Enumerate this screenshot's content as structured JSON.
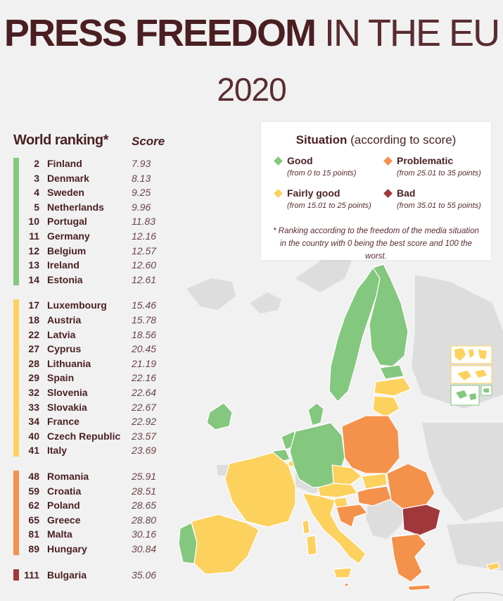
{
  "title": {
    "bold": "PRESS FREEDOM",
    "light": "IN THE EU",
    "year": "2020"
  },
  "columns": {
    "rank": "World ranking*",
    "score": "Score"
  },
  "colors": {
    "good": "#84c77e",
    "fairly_good": "#fcd15d",
    "problematic": "#f4914b",
    "bad": "#a0373b",
    "non_eu": "#dddddd"
  },
  "groups": [
    {
      "category": "good",
      "rows": [
        {
          "rank": "2",
          "country": "Finland",
          "score": "7.93"
        },
        {
          "rank": "3",
          "country": "Denmark",
          "score": "8.13"
        },
        {
          "rank": "4",
          "country": "Sweden",
          "score": "9.25"
        },
        {
          "rank": "5",
          "country": "Netherlands",
          "score": "9.96"
        },
        {
          "rank": "10",
          "country": "Portugal",
          "score": "11.83"
        },
        {
          "rank": "11",
          "country": "Germany",
          "score": "12.16"
        },
        {
          "rank": "12",
          "country": "Belgium",
          "score": "12.57"
        },
        {
          "rank": "13",
          "country": "Ireland",
          "score": "12.60"
        },
        {
          "rank": "14",
          "country": "Estonia",
          "score": "12.61"
        }
      ]
    },
    {
      "category": "fairly_good",
      "rows": [
        {
          "rank": "17",
          "country": "Luxembourg",
          "score": "15.46"
        },
        {
          "rank": "18",
          "country": "Austria",
          "score": "15.78"
        },
        {
          "rank": "22",
          "country": "Latvia",
          "score": "18.56"
        },
        {
          "rank": "27",
          "country": "Cyprus",
          "score": "20.45"
        },
        {
          "rank": "28",
          "country": "Lithuania",
          "score": "21.19"
        },
        {
          "rank": "29",
          "country": "Spain",
          "score": "22.16"
        },
        {
          "rank": "32",
          "country": "Slovenia",
          "score": "22.64"
        },
        {
          "rank": "33",
          "country": "Slovakia",
          "score": "22.67"
        },
        {
          "rank": "34",
          "country": "France",
          "score": "22.92"
        },
        {
          "rank": "40",
          "country": "Czech Republic",
          "score": "23.57"
        },
        {
          "rank": "41",
          "country": "Italy",
          "score": "23.69"
        }
      ]
    },
    {
      "category": "problematic",
      "rows": [
        {
          "rank": "48",
          "country": "Romania",
          "score": "25.91"
        },
        {
          "rank": "59",
          "country": "Croatia",
          "score": "28.51"
        },
        {
          "rank": "62",
          "country": "Poland",
          "score": "28.65"
        },
        {
          "rank": "65",
          "country": "Greece",
          "score": "28.80"
        },
        {
          "rank": "81",
          "country": "Malta",
          "score": "30.16"
        },
        {
          "rank": "89",
          "country": "Hungary",
          "score": "30.84"
        }
      ]
    },
    {
      "category": "bad",
      "rows": [
        {
          "rank": "111",
          "country": "Bulgaria",
          "score": "35.06"
        }
      ]
    }
  ],
  "legend": {
    "title_bold": "Situation",
    "title_rest": " (according to score)",
    "items": {
      "good": {
        "name": "Good",
        "range": "(from 0 to 15 points)"
      },
      "problematic": {
        "name": "Problematic",
        "range": "(from 25.01 to 35 points)"
      },
      "fairly_good": {
        "name": "Fairly good",
        "range": "(from 15.01 to 25 points)"
      },
      "bad": {
        "name": "Bad",
        "range": "(from 35.01 to 55 points)"
      }
    },
    "note": "* Ranking according to the freedom of the media situation in the country with 0 being the best score and 100 the worst."
  }
}
